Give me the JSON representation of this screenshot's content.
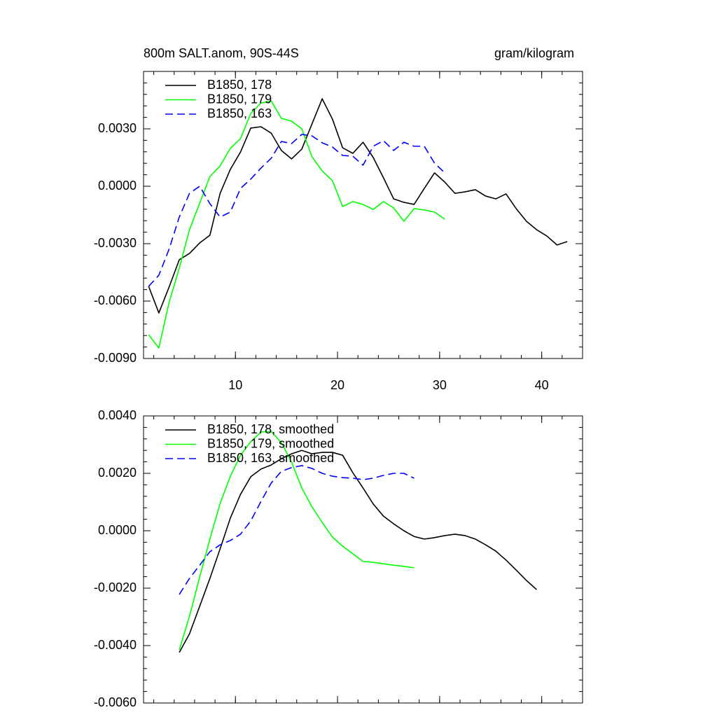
{
  "chart_data": [
    {
      "type": "line",
      "title": "800m SALT.anom, 90S-44S",
      "units": "gram/kilogram",
      "xlim": [
        1,
        44
      ],
      "xticks": [
        10,
        20,
        30,
        40
      ],
      "ylim": [
        -0.009,
        0.006
      ],
      "yticks": [
        {
          "value": -0.009,
          "label": "-0.0090"
        },
        {
          "value": -0.006,
          "label": "-0.0060"
        },
        {
          "value": -0.003,
          "label": "-0.0030"
        },
        {
          "value": 0,
          "label": "0.0000"
        },
        {
          "value": 0.003,
          "label": "0.0030"
        }
      ],
      "legend": "top-left",
      "series": [
        {
          "name": "B1850, 178",
          "color": "#000000",
          "dash": "solid",
          "x": [
            1.5,
            2.5,
            3.5,
            4.5,
            5.5,
            6.5,
            7.5,
            8.5,
            9.5,
            10.5,
            11.5,
            12.5,
            13.5,
            14.5,
            15.5,
            16.5,
            17.5,
            18.5,
            19.5,
            20.5,
            21.5,
            22.5,
            23.5,
            24.5,
            25.5,
            26.5,
            27.5,
            28.5,
            29.5,
            30.5,
            31.5,
            32.5,
            33.5,
            34.5,
            35.5,
            36.5,
            37.5,
            38.5,
            39.5,
            40.5,
            41.5,
            42.5
          ],
          "values": [
            -0.00523,
            -0.00662,
            -0.00527,
            -0.00384,
            -0.00351,
            -0.00296,
            -0.00256,
            -0.00037,
            0.00088,
            0.00179,
            0.00304,
            0.00311,
            0.00278,
            0.00187,
            0.00143,
            0.00194,
            0.00326,
            0.00457,
            0.00351,
            0.00201,
            0.00172,
            0.0023,
            0.0015,
            0.00044,
            -0.00066,
            -0.00084,
            -0.00095,
            -0.00011,
            0.0007,
            0.00022,
            -0.00037,
            -0.00029,
            -0.00018,
            -0.00051,
            -0.00066,
            -0.0004,
            -0.00117,
            -0.00183,
            -0.00227,
            -0.0026,
            -0.00307,
            -0.00289
          ]
        },
        {
          "name": "B1850, 179",
          "color": "#00ff00",
          "dash": "solid",
          "x": [
            1.5,
            2.5,
            3.5,
            4.5,
            5.5,
            6.5,
            7.5,
            8.5,
            9.5,
            10.5,
            11.5,
            12.5,
            13.5,
            14.5,
            15.5,
            16.5,
            17.5,
            18.5,
            19.5,
            20.5,
            21.5,
            22.5,
            23.5,
            24.5,
            25.5,
            26.5,
            27.5,
            28.5,
            29.5,
            30.5
          ],
          "values": [
            -0.00776,
            -0.00845,
            -0.00607,
            -0.00428,
            -0.00227,
            -0.00088,
            0.00051,
            0.00106,
            0.00198,
            0.00249,
            0.0038,
            0.00435,
            0.00446,
            0.00355,
            0.0034,
            0.003,
            0.00154,
            0.0008,
            0.00029,
            -0.00106,
            -0.0008,
            -0.00095,
            -0.00121,
            -0.0008,
            -0.00113,
            -0.00183,
            -0.00117,
            -0.00124,
            -0.00135,
            -0.00172
          ]
        },
        {
          "name": "B1850, 163",
          "color": "#0000ff",
          "dash": "dashed",
          "x": [
            1.5,
            2.5,
            3.5,
            4.5,
            5.5,
            6.5,
            7.5,
            8.5,
            9.5,
            10.5,
            11.5,
            12.5,
            13.5,
            14.5,
            15.5,
            16.5,
            17.5,
            18.5,
            19.5,
            20.5,
            21.5,
            22.5,
            23.5,
            24.5,
            25.5,
            26.5,
            27.5,
            28.5,
            29.5,
            30.5
          ],
          "values": [
            -0.00523,
            -0.00465,
            -0.00329,
            -0.00161,
            -0.00037,
            0,
            -0.00091,
            -0.00161,
            -0.00135,
            -0.00011,
            0.00037,
            0.00095,
            0.00146,
            0.00234,
            0.00223,
            0.00271,
            0.00263,
            0.00227,
            0.00205,
            0.00161,
            0.00157,
            0.0011,
            0.00209,
            0.00238,
            0.00187,
            0.0023,
            0.00209,
            0.00209,
            0.00121,
            0.0007
          ]
        }
      ]
    },
    {
      "type": "line",
      "xlim": [
        1,
        44
      ],
      "xticks": [
        10,
        20,
        30,
        40
      ],
      "ylim": [
        -0.006,
        0.004
      ],
      "yticks": [
        {
          "value": -0.006,
          "label": "-0.0060"
        },
        {
          "value": -0.004,
          "label": "-0.0040"
        },
        {
          "value": -0.002,
          "label": "-0.0020"
        },
        {
          "value": 0,
          "label": "0.0000"
        },
        {
          "value": 0.002,
          "label": "0.0020"
        },
        {
          "value": 0.004,
          "label": "0.0040"
        }
      ],
      "legend": "top-left",
      "series": [
        {
          "name": "B1850, 178, smoothed",
          "color": "#000000",
          "dash": "solid",
          "x": [
            4.5,
            5.5,
            6.5,
            7.5,
            8.5,
            9.5,
            10.5,
            11.5,
            12.5,
            13.5,
            14.5,
            15.5,
            16.5,
            17.5,
            18.5,
            19.5,
            20.5,
            21.5,
            22.5,
            23.5,
            24.5,
            25.5,
            26.5,
            27.5,
            28.5,
            29.5,
            30.5,
            31.5,
            32.5,
            33.5,
            34.5,
            35.5,
            36.5,
            37.5,
            38.5,
            39.5
          ],
          "values": [
            -0.00424,
            -0.00359,
            -0.00263,
            -0.00166,
            -0.00063,
            0.00044,
            0.00127,
            0.00188,
            0.00215,
            0.00229,
            0.00251,
            0.00268,
            0.0028,
            0.00268,
            0.00273,
            0.00273,
            0.00263,
            0.00202,
            0.00149,
            0.00093,
            0.00051,
            0.00024,
            0,
            -0.0002,
            -0.00029,
            -0.00024,
            -0.00017,
            -0.00012,
            -0.00017,
            -0.00029,
            -0.00049,
            -0.00071,
            -0.00102,
            -0.00137,
            -0.00173,
            -0.00205
          ]
        },
        {
          "name": "B1850, 179, smoothed",
          "color": "#00ff00",
          "dash": "solid",
          "x": [
            4.5,
            5.5,
            6.5,
            7.5,
            8.5,
            9.5,
            10.5,
            11.5,
            12.5,
            13.5,
            14.5,
            15.5,
            16.5,
            17.5,
            18.5,
            19.5,
            20.5,
            21.5,
            22.5,
            23.5,
            24.5,
            25.5,
            26.5,
            27.5
          ],
          "values": [
            -0.00415,
            -0.00298,
            -0.00161,
            -0.00029,
            0.00095,
            0.0019,
            0.00263,
            0.0031,
            0.00344,
            0.00346,
            0.00307,
            0.00239,
            0.00149,
            0.00083,
            0.00029,
            -0.00022,
            -0.00054,
            -0.0008,
            -0.00107,
            -0.0011,
            -0.00115,
            -0.0012,
            -0.00124,
            -0.00129
          ]
        },
        {
          "name": "B1850, 163, smoothed",
          "color": "#0000ff",
          "dash": "dashed",
          "x": [
            4.5,
            5.5,
            6.5,
            7.5,
            8.5,
            9.5,
            10.5,
            11.5,
            12.5,
            13.5,
            14.5,
            15.5,
            16.5,
            17.5,
            18.5,
            19.5,
            20.5,
            21.5,
            22.5,
            23.5,
            24.5,
            25.5,
            26.5,
            27.5
          ],
          "values": [
            -0.00222,
            -0.00166,
            -0.0012,
            -0.00073,
            -0.00049,
            -0.00034,
            -0.00012,
            0.00034,
            0.00102,
            0.00166,
            0.00207,
            0.0022,
            0.00227,
            0.00217,
            0.002,
            0.0019,
            0.00185,
            0.00183,
            0.00178,
            0.00183,
            0.00193,
            0.002,
            0.002,
            0.00183
          ]
        }
      ]
    }
  ]
}
